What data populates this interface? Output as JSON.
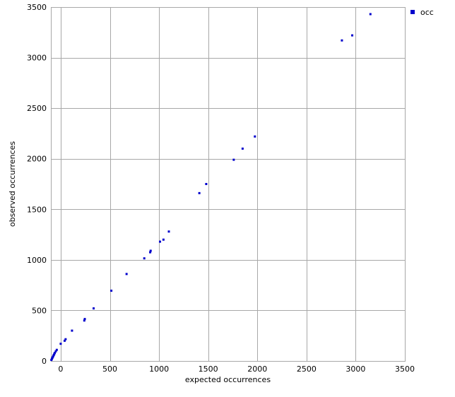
{
  "chart_data": {
    "type": "scatter",
    "title": "",
    "xlabel": "expected occurrences",
    "ylabel": "observed occurrences",
    "xlim": [
      -100,
      3500
    ],
    "ylim": [
      0,
      3500
    ],
    "x_ticks": [
      0,
      500,
      1000,
      1500,
      2000,
      2500,
      3000,
      3500
    ],
    "y_ticks": [
      0,
      500,
      1000,
      1500,
      2000,
      2500,
      3000,
      3500
    ],
    "grid": true,
    "legend_position": "top-right",
    "series": [
      {
        "name": "occ",
        "color": "#0000cc",
        "points": [
          [
            -95,
            10
          ],
          [
            -90,
            20
          ],
          [
            -85,
            30
          ],
          [
            -80,
            40
          ],
          [
            -75,
            50
          ],
          [
            -70,
            60
          ],
          [
            -65,
            70
          ],
          [
            -60,
            80
          ],
          [
            -50,
            95
          ],
          [
            -40,
            110
          ],
          [
            0,
            170
          ],
          [
            40,
            200
          ],
          [
            50,
            215
          ],
          [
            115,
            300
          ],
          [
            240,
            400
          ],
          [
            245,
            415
          ],
          [
            335,
            520
          ],
          [
            515,
            695
          ],
          [
            670,
            860
          ],
          [
            850,
            1015
          ],
          [
            910,
            1075
          ],
          [
            915,
            1090
          ],
          [
            1010,
            1180
          ],
          [
            1045,
            1200
          ],
          [
            1100,
            1280
          ],
          [
            1410,
            1660
          ],
          [
            1480,
            1750
          ],
          [
            1760,
            1990
          ],
          [
            1850,
            2100
          ],
          [
            1975,
            2220
          ],
          [
            2860,
            3170
          ],
          [
            2965,
            3220
          ],
          [
            3150,
            3430
          ]
        ]
      }
    ]
  }
}
